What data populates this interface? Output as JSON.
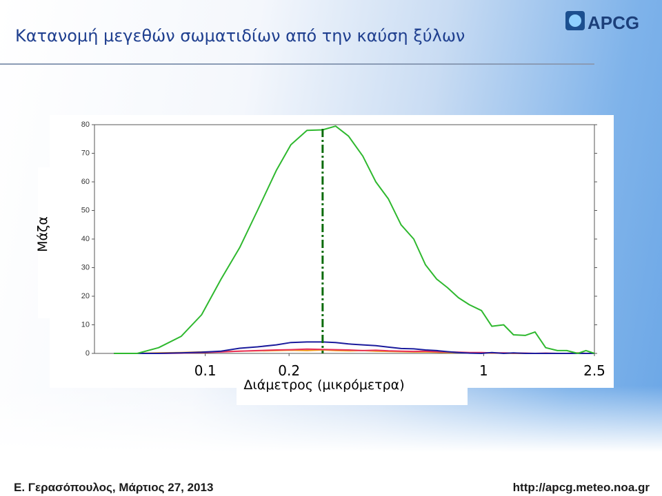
{
  "slide": {
    "title": "Κατανομή μεγεθών σωματιδίων από την καύση ξύλων",
    "footer_left": "Ε. Γερασόπουλος, Μάρτιος 27, 2013",
    "footer_right": "http://apcg.meteo.noa.gr",
    "logo": "APCG"
  },
  "chart_data": {
    "type": "line",
    "x_label": "Διάμετρος (μικρόμετρα)",
    "y_label": "Μάζα",
    "x": [
      0.047,
      0.057,
      0.068,
      0.082,
      0.097,
      0.114,
      0.133,
      0.154,
      0.18,
      0.203,
      0.232,
      0.264,
      0.294,
      0.327,
      0.368,
      0.41,
      0.455,
      0.505,
      0.561,
      0.618,
      0.678,
      0.742,
      0.812,
      0.889,
      0.982,
      1.07,
      1.18,
      1.28,
      1.41,
      1.53,
      1.67,
      1.84,
      1.99,
      2.18,
      2.33,
      2.5
    ],
    "series": [
      {
        "color": "#2eb82e",
        "values": [
          0,
          0,
          2,
          6,
          13.5,
          26,
          37,
          50,
          64,
          73,
          78,
          78.2,
          79.5,
          76,
          69,
          60,
          54,
          45,
          40,
          31,
          26,
          23,
          19.5,
          17,
          15,
          9.5,
          10,
          6.5,
          6.3,
          7.5,
          2,
          1,
          1,
          0,
          1,
          0
        ]
      },
      {
        "color": "#1a1a9c",
        "values": [
          0,
          0,
          0,
          0.2,
          0.4,
          0.8,
          1.8,
          2.3,
          3,
          3.8,
          4,
          4,
          3.8,
          3.3,
          3,
          2.7,
          2.2,
          1.7,
          1.6,
          1.2,
          1,
          0.6,
          0.3,
          0.1,
          0,
          0.3,
          0,
          0.2,
          0,
          0,
          0,
          0,
          0,
          0,
          0,
          0
        ]
      },
      {
        "color": "#e8305a",
        "values": [
          0,
          0,
          0,
          0.1,
          0.3,
          0.5,
          0.8,
          1,
          1.2,
          1.3,
          1.5,
          1.4,
          1.3,
          1.2,
          1,
          1.1,
          0.9,
          0.8,
          0.7,
          0.8,
          0.6,
          0.5,
          0.4,
          0.3,
          0.3,
          0.2,
          0.2,
          0.1,
          0.1,
          0,
          0.1,
          0,
          0,
          0.2,
          0,
          0
        ]
      },
      {
        "color": "#f0a020",
        "values": [
          0,
          0,
          0.2,
          0.3,
          0.5,
          0.6,
          0.8,
          0.9,
          1,
          1.1,
          1,
          1.2,
          1,
          0.9,
          1,
          0.8,
          0.7,
          0.6,
          0.5,
          0.5,
          0.4,
          0.3,
          0.3,
          0.2,
          0.2,
          0.1,
          0.1,
          0,
          0,
          0,
          0,
          0,
          0,
          0,
          0,
          0
        ]
      }
    ],
    "mode_line": {
      "x": 0.264,
      "color": "#0a6b0a"
    },
    "xscale": "log",
    "xlim": [
      0.04,
      2.5
    ],
    "xticks": [
      0.1,
      0.2,
      1,
      2.5
    ],
    "ylim": [
      0,
      80
    ],
    "yticks": [
      0,
      10,
      20,
      30,
      40,
      50,
      60,
      70,
      80
    ],
    "grid": false
  }
}
